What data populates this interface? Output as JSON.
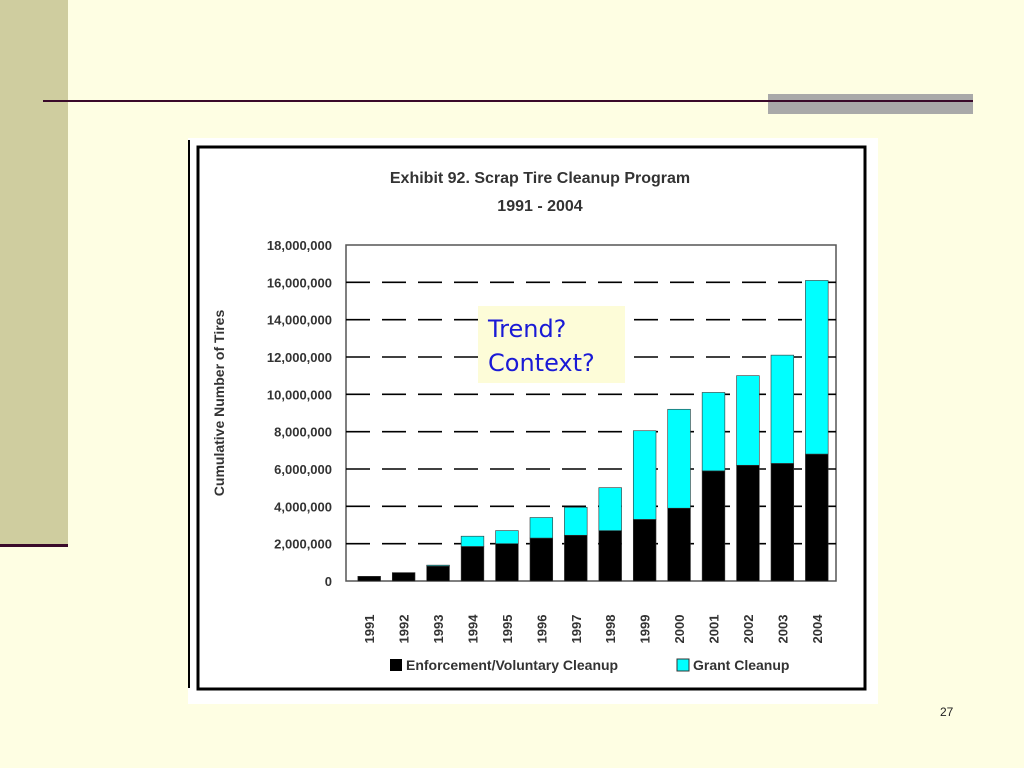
{
  "callout": {
    "line1": "Trend?",
    "line2": "Context?"
  },
  "slide_number": "27",
  "colors": {
    "enforcement": "#000000",
    "grant": "#00ffff",
    "background": "#fefee3",
    "sidebar": "#cfcd9f",
    "rule": "#3a0a2a",
    "callout_text": "#1a1ad6"
  },
  "chart_data": {
    "type": "bar",
    "stacked": true,
    "title": "Exhibit 92.  Scrap Tire Cleanup Program",
    "subtitle": "1991 - 2004",
    "xlabel": "",
    "ylabel": "Cumulative Number of Tires",
    "ylim": [
      0,
      18000000
    ],
    "yticks": [
      0,
      2000000,
      4000000,
      6000000,
      8000000,
      10000000,
      12000000,
      14000000,
      16000000,
      18000000
    ],
    "ytick_labels": [
      "0",
      "2,000,000",
      "4,000,000",
      "6,000,000",
      "8,000,000",
      "10,000,000",
      "12,000,000",
      "14,000,000",
      "16,000,000",
      "18,000,000"
    ],
    "grid": "dashed horizontal",
    "legend_position": "bottom",
    "categories": [
      "1991",
      "1992",
      "1993",
      "1994",
      "1995",
      "1996",
      "1997",
      "1998",
      "1999",
      "2000",
      "2001",
      "2002",
      "2003",
      "2004"
    ],
    "series": [
      {
        "name": "Enforcement/Voluntary Cleanup",
        "values": [
          250000,
          450000,
          800000,
          1850000,
          2000000,
          2300000,
          2450000,
          2700000,
          3300000,
          3900000,
          5900000,
          6200000,
          6300000,
          6800000
        ]
      },
      {
        "name": "Grant Cleanup",
        "values": [
          0,
          0,
          50000,
          550000,
          700000,
          1100000,
          1500000,
          2300000,
          4750000,
          5300000,
          4200000,
          4800000,
          5800000,
          9300000
        ]
      }
    ]
  }
}
